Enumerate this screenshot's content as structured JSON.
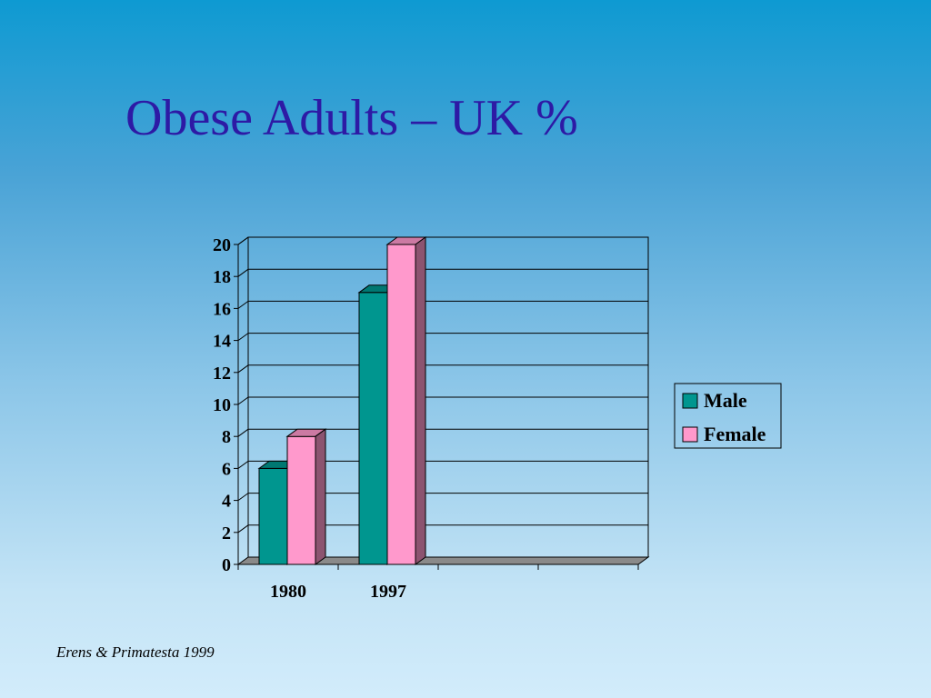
{
  "slide": {
    "title": "Obese Adults – UK %",
    "source": "Erens & Primatesta 1999"
  },
  "chart_data": {
    "type": "bar",
    "style": "3d-clustered-column",
    "categories": [
      "1980",
      "1997",
      "",
      ""
    ],
    "series": [
      {
        "name": "Male",
        "values": [
          6,
          17,
          null,
          null
        ],
        "color": "#00968f"
      },
      {
        "name": "Female",
        "values": [
          8,
          20,
          null,
          null
        ],
        "color": "#ff99cc"
      }
    ],
    "title": "",
    "xlabel": "",
    "ylabel": "",
    "ylim": [
      0,
      20
    ],
    "yticks": [
      0,
      2,
      4,
      6,
      8,
      10,
      12,
      14,
      16,
      18,
      20
    ],
    "grid": true,
    "legend": "right"
  }
}
